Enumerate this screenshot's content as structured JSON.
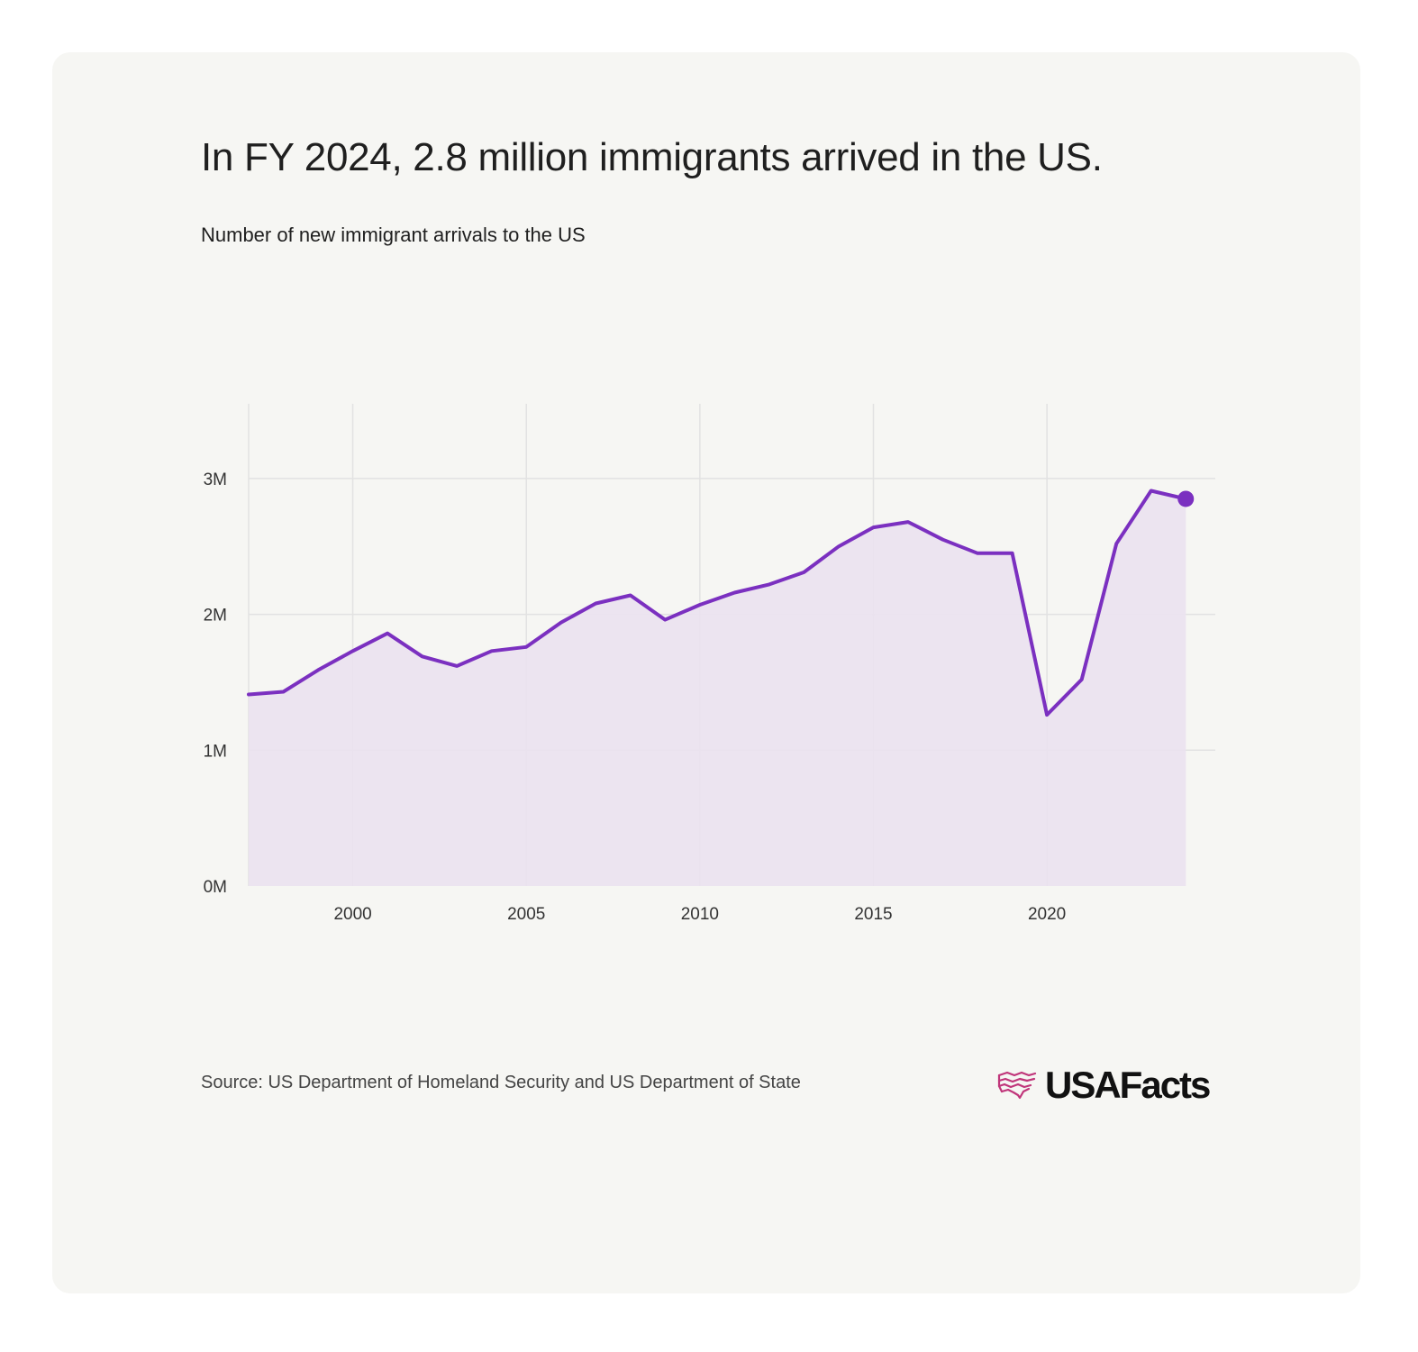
{
  "header": {
    "title": "In FY 2024, 2.8 million immigrants arrived in the US.",
    "subtitle": "Number of new immigrant arrivals to the US"
  },
  "footer": {
    "source": "Source: US Department of Homeland Security and US Department of State",
    "brand": "USAFacts"
  },
  "colors": {
    "line": "#7b30c0",
    "area": "#ebe2f0",
    "grid": "#e2e2e2",
    "logo": "#c0357a"
  },
  "chart_data": {
    "type": "area",
    "grid": true,
    "xlim": [
      1997,
      2024.85
    ],
    "ylim": [
      0,
      3550000
    ],
    "xticks": [
      2000,
      2005,
      2010,
      2015,
      2020
    ],
    "xtick_labels": [
      "2000",
      "2005",
      "2010",
      "2015",
      "2020"
    ],
    "yticks": [
      0,
      1000000,
      2000000,
      3000000
    ],
    "ytick_labels": [
      "0M",
      "1M",
      "2M",
      "3M"
    ],
    "highlight_last_point": true,
    "series": [
      {
        "x": [
          1997,
          1998,
          1999,
          2000,
          2001,
          2002,
          2003,
          2004,
          2005,
          2006,
          2007,
          2008,
          2009,
          2010,
          2011,
          2012,
          2013,
          2014,
          2015,
          2016,
          2017,
          2018,
          2019,
          2020,
          2021,
          2022,
          2023,
          2024
        ],
        "values": [
          1410000,
          1430000,
          1590000,
          1730000,
          1860000,
          1690000,
          1620000,
          1730000,
          1760000,
          1940000,
          2080000,
          2140000,
          1960000,
          2070000,
          2160000,
          2220000,
          2310000,
          2500000,
          2640000,
          2680000,
          2550000,
          2450000,
          2450000,
          1260000,
          1520000,
          2520000,
          2910000,
          2850000
        ]
      }
    ]
  }
}
